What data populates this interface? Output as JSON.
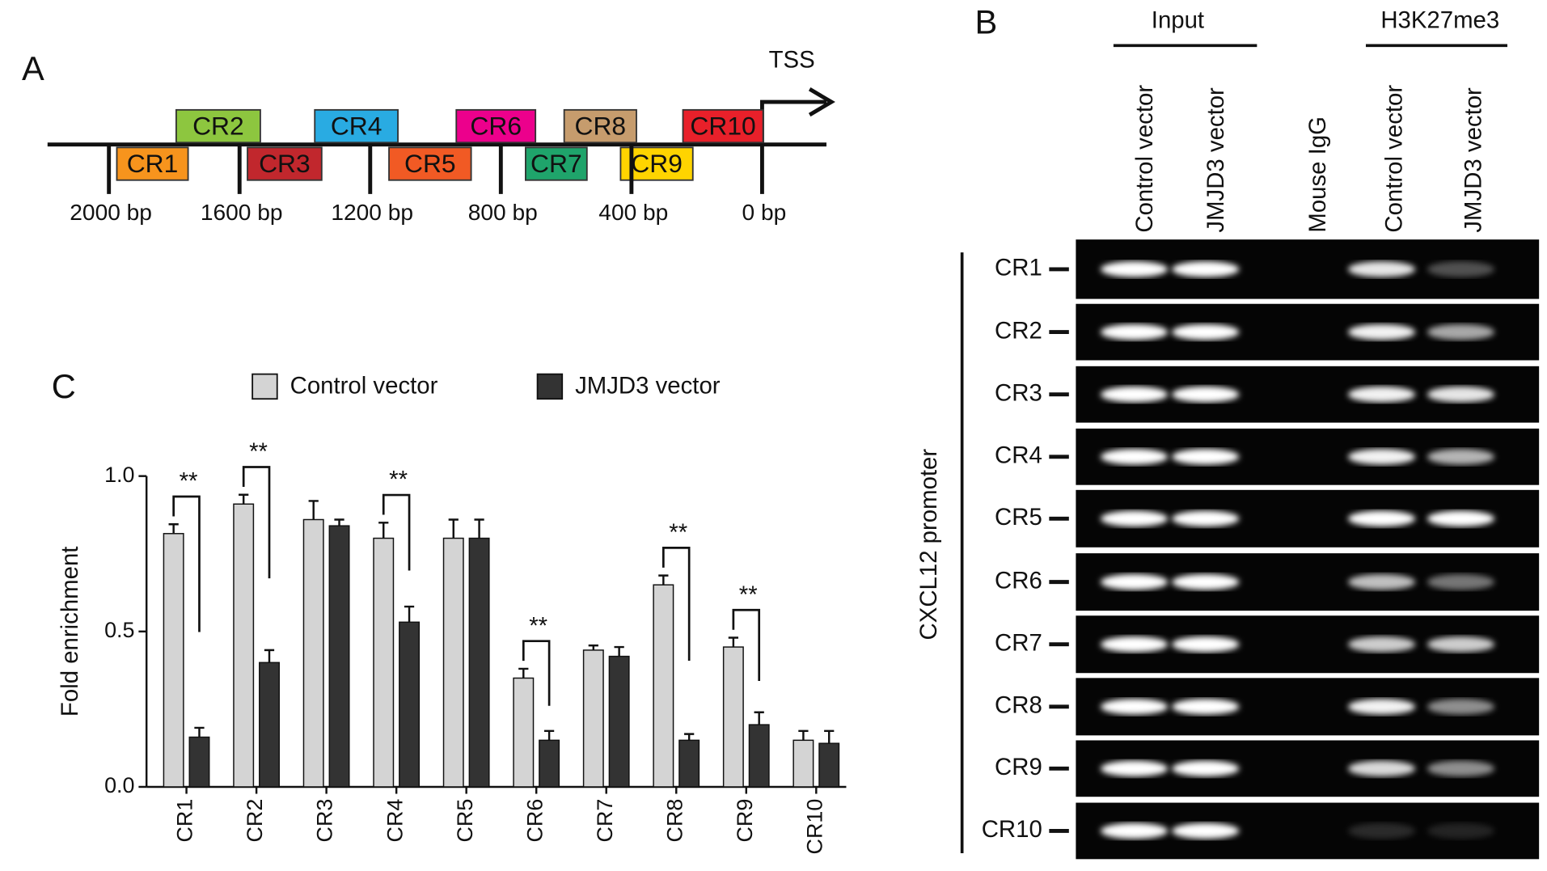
{
  "panel_a": {
    "label": "A",
    "tss": "TSS",
    "regions": [
      "CR1",
      "CR2",
      "CR3",
      "CR4",
      "CR5",
      "CR6",
      "CR7",
      "CR8",
      "CR9",
      "CR10"
    ],
    "colors": [
      "#f7941d",
      "#8dc63f",
      "#c1272d",
      "#29abe2",
      "#f15a24",
      "#ec008c",
      "#1fa46b",
      "#c69c6d",
      "#ffd400",
      "#e8202a"
    ],
    "scale_labels": [
      "2000 bp",
      "1600 bp",
      "1200 bp",
      "800 bp",
      "400 bp",
      "0 bp"
    ]
  },
  "panel_b": {
    "label": "B",
    "groups": [
      "Input",
      "H3K27me3"
    ],
    "lanes": [
      "Control vector",
      "JMJD3 vector",
      "Mouse IgG",
      "Control vector",
      "JMJD3 vector"
    ],
    "side_label": "CXCL12 promoter",
    "rows": [
      "CR1",
      "CR2",
      "CR3",
      "CR4",
      "CR5",
      "CR6",
      "CR7",
      "CR8",
      "CR9",
      "CR10"
    ]
  },
  "chart_data": {
    "type": "bar",
    "panel_label": "C",
    "ylabel": "Fold enrichment",
    "categories": [
      "CR1",
      "CR2",
      "CR3",
      "CR4",
      "CR5",
      "CR6",
      "CR7",
      "CR8",
      "CR9",
      "CR10"
    ],
    "series": [
      {
        "name": "Control vector",
        "color": "#d4d4d4",
        "values": [
          0.815,
          0.91,
          0.86,
          0.8,
          0.8,
          0.35,
          0.44,
          0.65,
          0.45,
          0.15
        ],
        "errors": [
          0.03,
          0.03,
          0.06,
          0.05,
          0.06,
          0.03,
          0.015,
          0.03,
          0.03,
          0.03
        ]
      },
      {
        "name": "JMJD3 vector",
        "color": "#333333",
        "values": [
          0.16,
          0.4,
          0.84,
          0.53,
          0.8,
          0.15,
          0.42,
          0.15,
          0.2,
          0.14
        ],
        "errors": [
          0.03,
          0.04,
          0.02,
          0.05,
          0.06,
          0.03,
          0.03,
          0.02,
          0.04,
          0.04
        ]
      }
    ],
    "significance": [
      "**",
      "**",
      null,
      "**",
      null,
      "**",
      null,
      "**",
      "**",
      null
    ],
    "ylim": [
      0,
      1
    ],
    "yticks": [
      {
        "value": 0,
        "label": "0.0"
      },
      {
        "value": 0.5,
        "label": "0.5"
      },
      {
        "value": 1,
        "label": "1.0"
      }
    ]
  }
}
